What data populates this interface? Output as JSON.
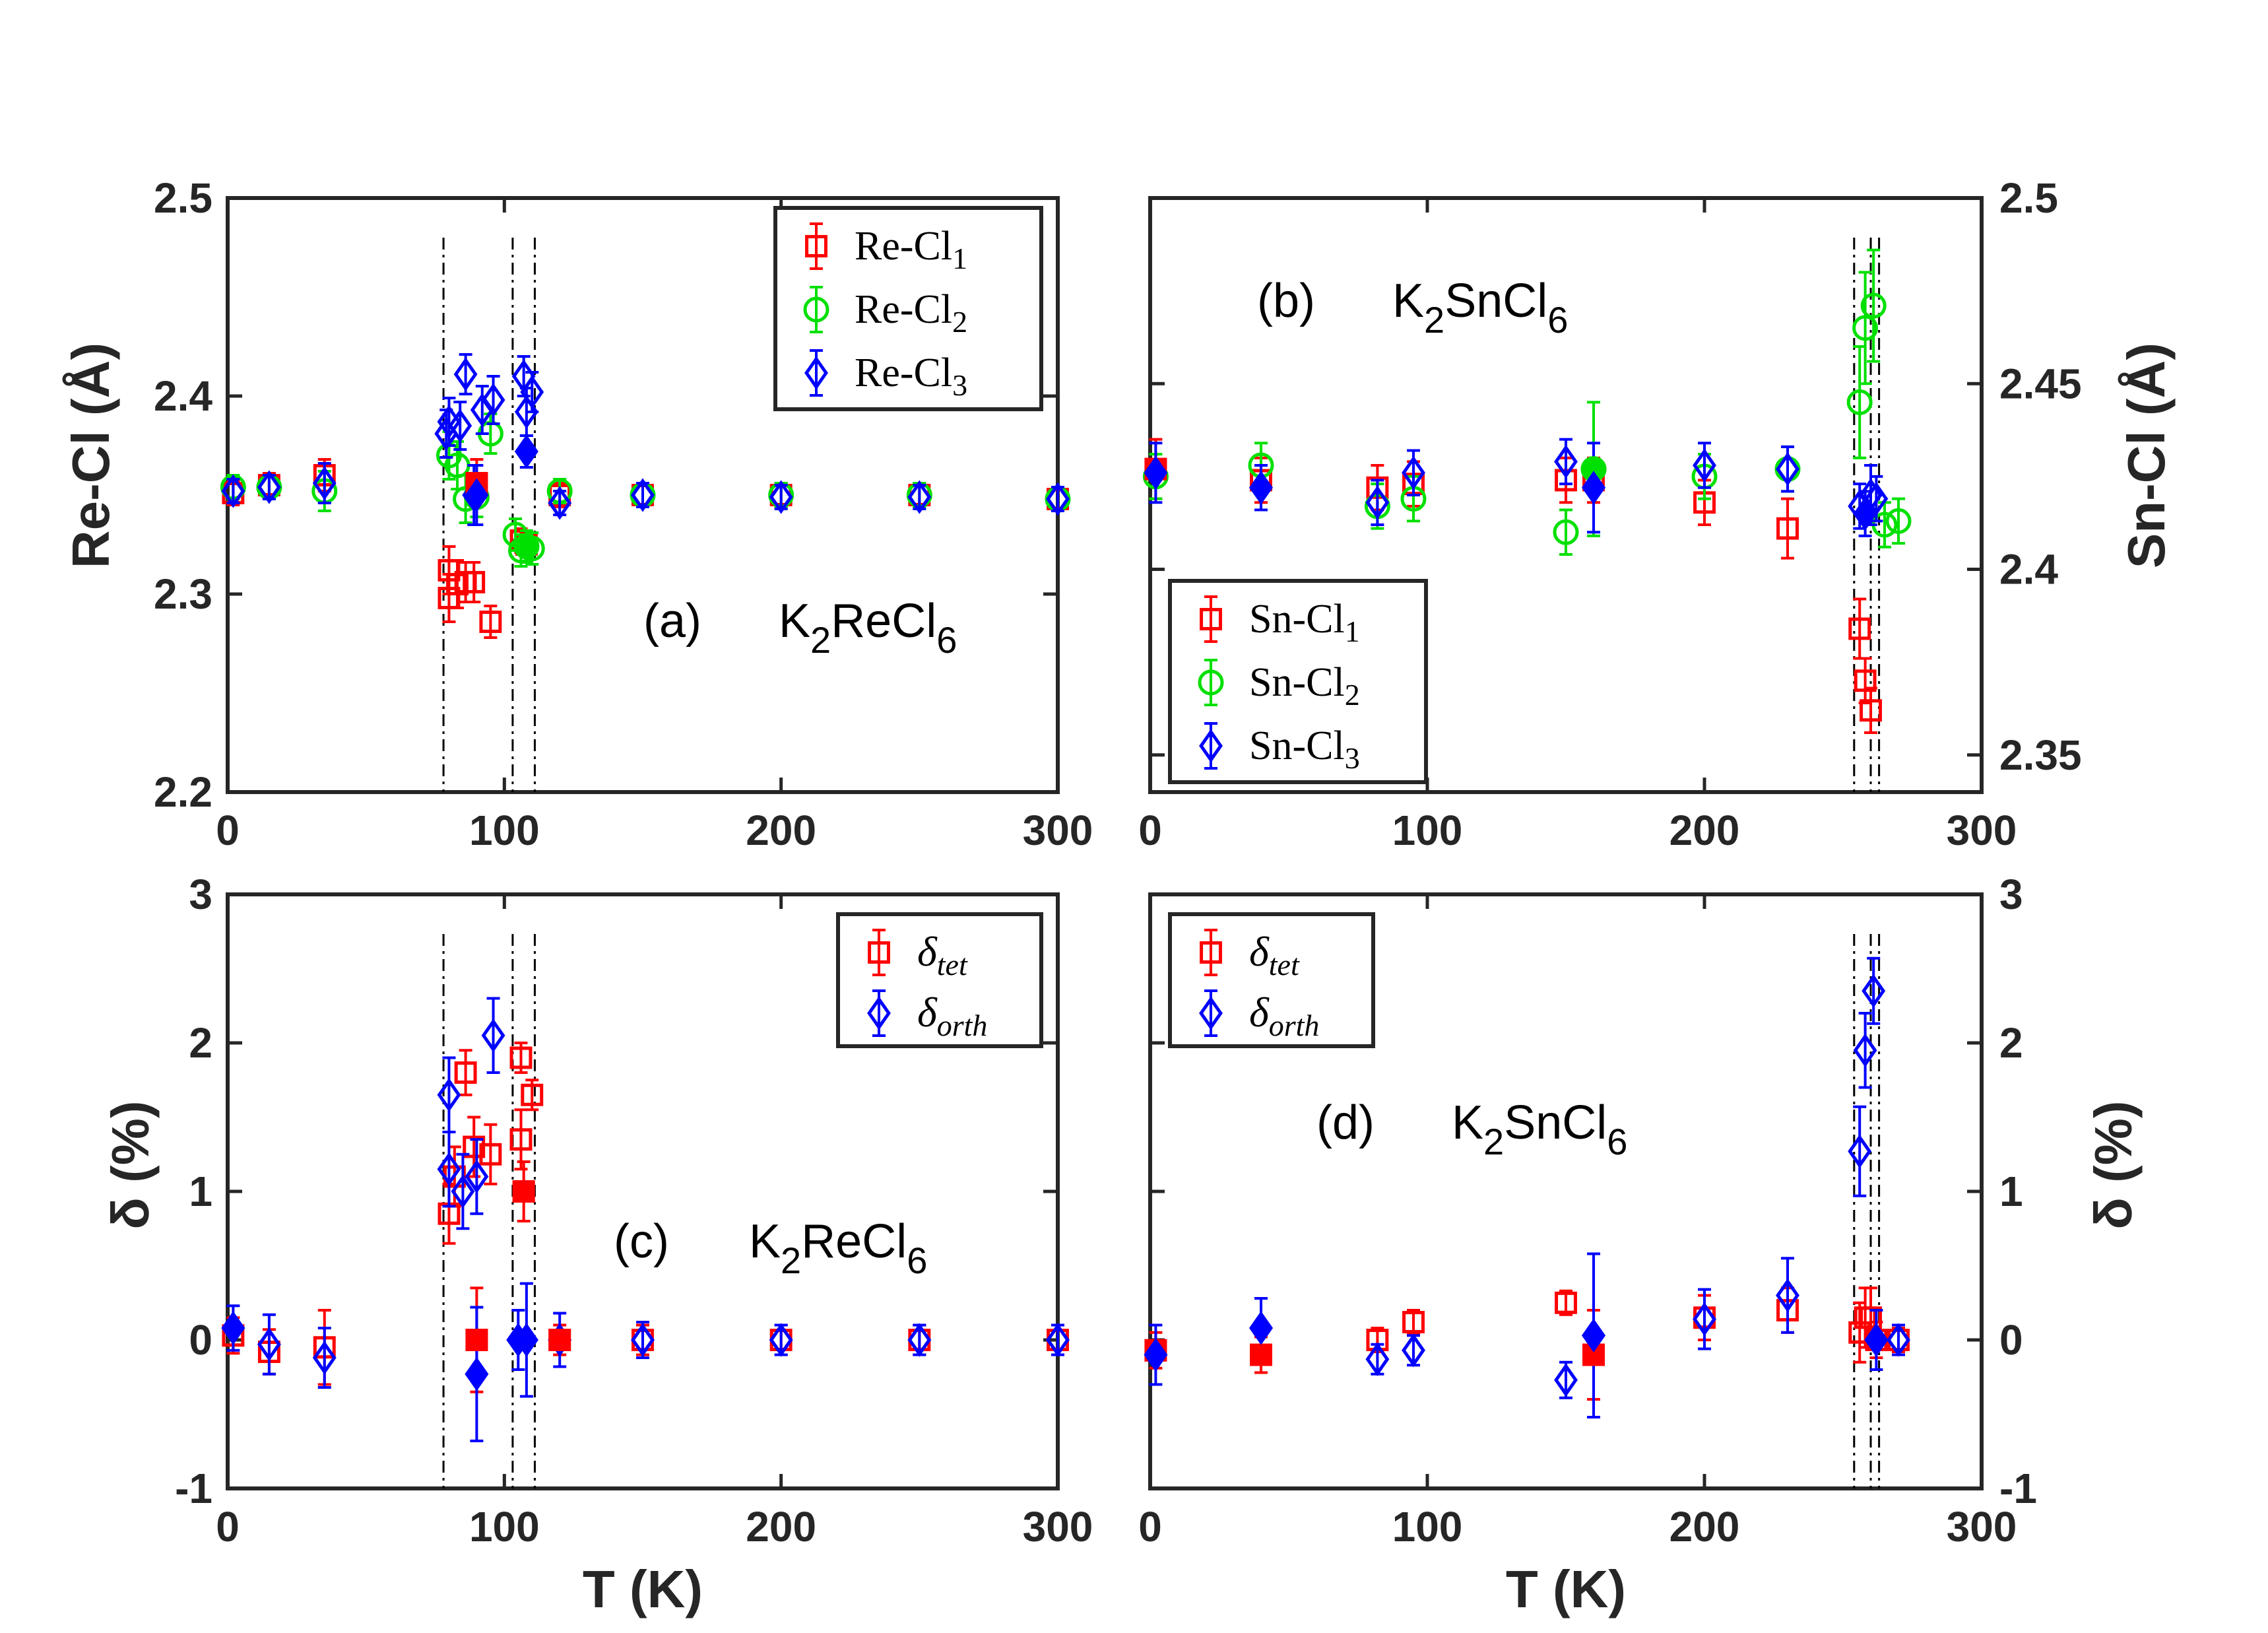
{
  "figure": {
    "x_label": "T (K)",
    "left_top_ylabel": "Re-Cl (Å)",
    "right_top_ylabel": "Sn-Cl (Å)",
    "left_bottom_ylabel": "δ (%)",
    "right_bottom_ylabel": "δ (%)"
  },
  "colors": {
    "red": "#ff0000",
    "green": "#00e000",
    "blue": "#0000ff",
    "axes": "#262626"
  },
  "chart_data": [
    {
      "id": "a",
      "type": "scatter",
      "panel_label": "(a)",
      "compound": {
        "prefix": "K",
        "sub1": "2",
        "mid": "ReCl",
        "sub2": "6"
      },
      "xlim": [
        0,
        300
      ],
      "ylim": [
        2.2,
        2.5
      ],
      "xticks": [
        0,
        100,
        200,
        300
      ],
      "yticks": [
        2.2,
        2.3,
        2.4,
        2.5
      ],
      "ytick_labels": [
        "2.2",
        "2.3",
        "2.4",
        "2.5"
      ],
      "ylabel": "Re-Cl (Å)",
      "legend_position": "top-right",
      "vlines": [
        78,
        103,
        111
      ],
      "series": [
        {
          "name": "Re-Cl",
          "sub": "1",
          "color": "#ff0000",
          "marker": "square",
          "points": [
            [
              2,
              2.351,
              0.006
            ],
            [
              15,
              2.355,
              0.006
            ],
            [
              35,
              2.36,
              0.008
            ],
            [
              80,
              2.298,
              0.012
            ],
            [
              80,
              2.312,
              0.012
            ],
            [
              83,
              2.305,
              0.012
            ],
            [
              86,
              2.306,
              0.01
            ],
            [
              89,
              2.306,
              0.01
            ],
            [
              90,
              2.356,
              0.012
            ],
            [
              95,
              2.286,
              0.008
            ],
            [
              106,
              2.327,
              0.006
            ],
            [
              108,
              2.325,
              0.006
            ],
            [
              120,
              2.35,
              0.006
            ],
            [
              150,
              2.35,
              0.006
            ],
            [
              200,
              2.35,
              0.006
            ],
            [
              250,
              2.35,
              0.006
            ],
            [
              300,
              2.348,
              0.006
            ]
          ]
        },
        {
          "name": "Re-Cl",
          "sub": "2",
          "color": "#00e000",
          "marker": "circle",
          "points": [
            [
              2,
              2.354,
              0.006
            ],
            [
              15,
              2.354,
              0.006
            ],
            [
              35,
              2.352,
              0.01
            ],
            [
              80,
              2.37,
              0.012
            ],
            [
              83,
              2.365,
              0.012
            ],
            [
              86,
              2.348,
              0.012
            ],
            [
              90,
              2.349,
              0.01
            ],
            [
              95,
              2.381,
              0.01
            ],
            [
              104,
              2.33,
              0.008
            ],
            [
              106,
              2.322,
              0.008
            ],
            [
              108,
              2.324,
              0.008
            ],
            [
              110,
              2.323,
              0.008
            ],
            [
              120,
              2.352,
              0.006
            ],
            [
              150,
              2.35,
              0.006
            ],
            [
              200,
              2.35,
              0.006
            ],
            [
              250,
              2.35,
              0.006
            ],
            [
              300,
              2.348,
              0.006
            ]
          ]
        },
        {
          "name": "Re-Cl",
          "sub": "3",
          "color": "#0000ff",
          "marker": "diamond",
          "points": [
            [
              2,
              2.352,
              0.006
            ],
            [
              15,
              2.354,
              0.006
            ],
            [
              35,
              2.356,
              0.01
            ],
            [
              79,
              2.381,
              0.012
            ],
            [
              80,
              2.387,
              0.012
            ],
            [
              84,
              2.385,
              0.012
            ],
            [
              86,
              2.411,
              0.01
            ],
            [
              89,
              2.35,
              0.015
            ],
            [
              90,
              2.35,
              0.015
            ],
            [
              92,
              2.393,
              0.012
            ],
            [
              96,
              2.398,
              0.012
            ],
            [
              107,
              2.41,
              0.01
            ],
            [
              108,
              2.392,
              0.012
            ],
            [
              110,
              2.402,
              0.01
            ],
            [
              108,
              2.372,
              0.008
            ],
            [
              120,
              2.346,
              0.006
            ],
            [
              150,
              2.35,
              0.006
            ],
            [
              200,
              2.349,
              0.006
            ],
            [
              250,
              2.349,
              0.006
            ],
            [
              300,
              2.348,
              0.006
            ]
          ]
        }
      ],
      "filled": [
        [
          "#ff0000",
          90,
          2.356
        ],
        [
          "#00e000",
          108,
          2.324
        ],
        [
          "#0000ff",
          90,
          2.35
        ],
        [
          "#0000ff",
          108,
          2.372
        ]
      ]
    },
    {
      "id": "b",
      "type": "scatter",
      "panel_label": "(b)",
      "compound": {
        "prefix": "K",
        "sub1": "2",
        "mid": "SnCl",
        "sub2": "6"
      },
      "xlim": [
        0,
        300
      ],
      "ylim": [
        2.34,
        2.5
      ],
      "xticks": [
        0,
        100,
        200,
        300
      ],
      "yticks": [
        2.35,
        2.4,
        2.45,
        2.5
      ],
      "ytick_labels": [
        "2.35",
        "2.4",
        "2.45",
        "2.5"
      ],
      "ylabel": "Sn-Cl (Å)",
      "legend_position": "bottom-left",
      "vlines": [
        254,
        260,
        263
      ],
      "series": [
        {
          "name": "Sn-Cl",
          "sub": "1",
          "color": "#ff0000",
          "marker": "square",
          "points": [
            [
              2,
              2.427,
              0.008
            ],
            [
              40,
              2.424,
              0.006
            ],
            [
              82,
              2.422,
              0.006
            ],
            [
              95,
              2.423,
              0.006
            ],
            [
              150,
              2.424,
              0.006
            ],
            [
              160,
              2.424,
              0.006
            ],
            [
              200,
              2.418,
              0.006
            ],
            [
              230,
              2.411,
              0.008
            ],
            [
              256,
              2.384,
              0.008
            ],
            [
              258,
              2.37,
              0.006
            ],
            [
              260,
              2.362,
              0.006
            ]
          ]
        },
        {
          "name": "Sn-Cl",
          "sub": "2",
          "color": "#00e000",
          "marker": "circle",
          "points": [
            [
              2,
              2.425,
              0.006
            ],
            [
              40,
              2.428,
              0.006
            ],
            [
              82,
              2.417,
              0.006
            ],
            [
              95,
              2.419,
              0.006
            ],
            [
              150,
              2.41,
              0.006
            ],
            [
              160,
              2.427,
              0.018
            ],
            [
              200,
              2.425,
              0.006
            ],
            [
              230,
              2.427,
              0.006
            ],
            [
              256,
              2.445,
              0.015
            ],
            [
              258,
              2.465,
              0.015
            ],
            [
              261,
              2.471,
              0.015
            ],
            [
              265,
              2.412,
              0.006
            ],
            [
              270,
              2.413,
              0.006
            ]
          ]
        },
        {
          "name": "Sn-Cl",
          "sub": "3",
          "color": "#0000ff",
          "marker": "diamond",
          "points": [
            [
              2,
              2.426,
              0.008
            ],
            [
              40,
              2.422,
              0.006
            ],
            [
              82,
              2.418,
              0.006
            ],
            [
              95,
              2.426,
              0.006
            ],
            [
              150,
              2.429,
              0.006
            ],
            [
              160,
              2.422,
              0.012
            ],
            [
              200,
              2.428,
              0.006
            ],
            [
              230,
              2.427,
              0.006
            ],
            [
              256,
              2.417,
              0.006
            ],
            [
              258,
              2.415,
              0.006
            ],
            [
              260,
              2.42,
              0.008
            ],
            [
              262,
              2.419,
              0.006
            ]
          ]
        }
      ],
      "filled": [
        [
          "#ff0000",
          2,
          2.427
        ],
        [
          "#00e000",
          160,
          2.427
        ],
        [
          "#0000ff",
          2,
          2.426
        ],
        [
          "#0000ff",
          40,
          2.422
        ],
        [
          "#0000ff",
          160,
          2.422
        ],
        [
          "#0000ff",
          258,
          2.415
        ]
      ]
    },
    {
      "id": "c",
      "type": "scatter",
      "panel_label": "(c)",
      "compound": {
        "prefix": "K",
        "sub1": "2",
        "mid": "ReCl",
        "sub2": "6"
      },
      "xlim": [
        0,
        300
      ],
      "ylim": [
        -1,
        3
      ],
      "xticks": [
        0,
        100,
        200,
        300
      ],
      "yticks": [
        -1,
        0,
        1,
        2,
        3
      ],
      "ytick_labels": [
        "-1",
        "0",
        "1",
        "2",
        "3"
      ],
      "ylabel": "δ (%)",
      "legend_position": "top-right",
      "vlines": [
        78,
        103,
        111
      ],
      "series": [
        {
          "name": "δ",
          "sub": "tet",
          "color": "#ff0000",
          "marker": "square",
          "points": [
            [
              2,
              0.03,
              0.12
            ],
            [
              15,
              -0.08,
              0.15
            ],
            [
              35,
              -0.05,
              0.25
            ],
            [
              80,
              0.85,
              0.2
            ],
            [
              82,
              1.1,
              0.2
            ],
            [
              86,
              1.8,
              0.15
            ],
            [
              89,
              1.3,
              0.2
            ],
            [
              90,
              0.0,
              0.35
            ],
            [
              95,
              1.25,
              0.2
            ],
            [
              106,
              1.9,
              0.1
            ],
            [
              106,
              1.35,
              0.2
            ],
            [
              107,
              1.0,
              0.2
            ],
            [
              110,
              1.65,
              0.1
            ],
            [
              120,
              0.0,
              0.1
            ],
            [
              150,
              0.0,
              0.1
            ],
            [
              200,
              0.0,
              0.1
            ],
            [
              250,
              0.0,
              0.1
            ],
            [
              300,
              0.0,
              0.1
            ]
          ]
        },
        {
          "name": "δ",
          "sub": "orth",
          "color": "#0000ff",
          "marker": "diamond",
          "points": [
            [
              2,
              0.08,
              0.15
            ],
            [
              15,
              -0.03,
              0.2
            ],
            [
              35,
              -0.12,
              0.2
            ],
            [
              80,
              1.65,
              0.25
            ],
            [
              80,
              1.15,
              0.25
            ],
            [
              85,
              1.0,
              0.25
            ],
            [
              90,
              1.1,
              0.25
            ],
            [
              96,
              2.05,
              0.25
            ],
            [
              90,
              -0.23,
              0.45
            ],
            [
              105,
              0.0,
              0.2
            ],
            [
              108,
              0.0,
              0.38
            ],
            [
              120,
              0.0,
              0.18
            ],
            [
              150,
              0.0,
              0.12
            ],
            [
              200,
              0.0,
              0.1
            ],
            [
              250,
              0.0,
              0.1
            ],
            [
              300,
              0.0,
              0.1
            ]
          ]
        }
      ],
      "filled": [
        [
          "#ff0000",
          90,
          0.0
        ],
        [
          "#ff0000",
          107,
          1.0
        ],
        [
          "#ff0000",
          120,
          0.0
        ],
        [
          "#0000ff",
          2,
          0.08
        ],
        [
          "#0000ff",
          90,
          -0.23
        ],
        [
          "#0000ff",
          105,
          0.0
        ],
        [
          "#0000ff",
          108,
          0.0
        ]
      ]
    },
    {
      "id": "d",
      "type": "scatter",
      "panel_label": "(d)",
      "compound": {
        "prefix": "K",
        "sub1": "2",
        "mid": "SnCl",
        "sub2": "6"
      },
      "xlim": [
        0,
        300
      ],
      "ylim": [
        -1,
        3
      ],
      "xticks": [
        0,
        100,
        200,
        300
      ],
      "yticks": [
        -1,
        0,
        1,
        2,
        3
      ],
      "ytick_labels": [
        "-1",
        "0",
        "1",
        "2",
        "3"
      ],
      "ylabel": "δ (%)",
      "legend_position": "top-left",
      "vlines": [
        254,
        260,
        263
      ],
      "series": [
        {
          "name": "δ",
          "sub": "tet",
          "color": "#ff0000",
          "marker": "square",
          "points": [
            [
              2,
              -0.07,
              0.12
            ],
            [
              40,
              -0.1,
              0.12
            ],
            [
              82,
              0.0,
              0.08
            ],
            [
              95,
              0.12,
              0.08
            ],
            [
              150,
              0.25,
              0.08
            ],
            [
              160,
              -0.1,
              0.3
            ],
            [
              200,
              0.15,
              0.15
            ],
            [
              230,
              0.2,
              0.15
            ],
            [
              256,
              0.05,
              0.2
            ],
            [
              258,
              0.15,
              0.2
            ],
            [
              260,
              0.15,
              0.2
            ],
            [
              262,
              0.0,
              0.12
            ],
            [
              270,
              0.0,
              0.08
            ]
          ]
        },
        {
          "name": "δ",
          "sub": "orth",
          "color": "#0000ff",
          "marker": "diamond",
          "points": [
            [
              2,
              -0.1,
              0.2
            ],
            [
              40,
              0.08,
              0.2
            ],
            [
              82,
              -0.13,
              0.1
            ],
            [
              95,
              -0.07,
              0.1
            ],
            [
              150,
              -0.27,
              0.12
            ],
            [
              160,
              0.03,
              0.55
            ],
            [
              200,
              0.14,
              0.2
            ],
            [
              230,
              0.3,
              0.25
            ],
            [
              256,
              1.27,
              0.3
            ],
            [
              258,
              1.95,
              0.25
            ],
            [
              261,
              2.35,
              0.22
            ],
            [
              262,
              0.0,
              0.2
            ],
            [
              270,
              0.0,
              0.1
            ]
          ]
        }
      ],
      "filled": [
        [
          "#ff0000",
          2,
          -0.07
        ],
        [
          "#ff0000",
          40,
          -0.1
        ],
        [
          "#ff0000",
          160,
          -0.1
        ],
        [
          "#0000ff",
          2,
          -0.1
        ],
        [
          "#0000ff",
          40,
          0.08
        ],
        [
          "#0000ff",
          160,
          0.03
        ],
        [
          "#0000ff",
          262,
          0.0
        ]
      ]
    }
  ]
}
